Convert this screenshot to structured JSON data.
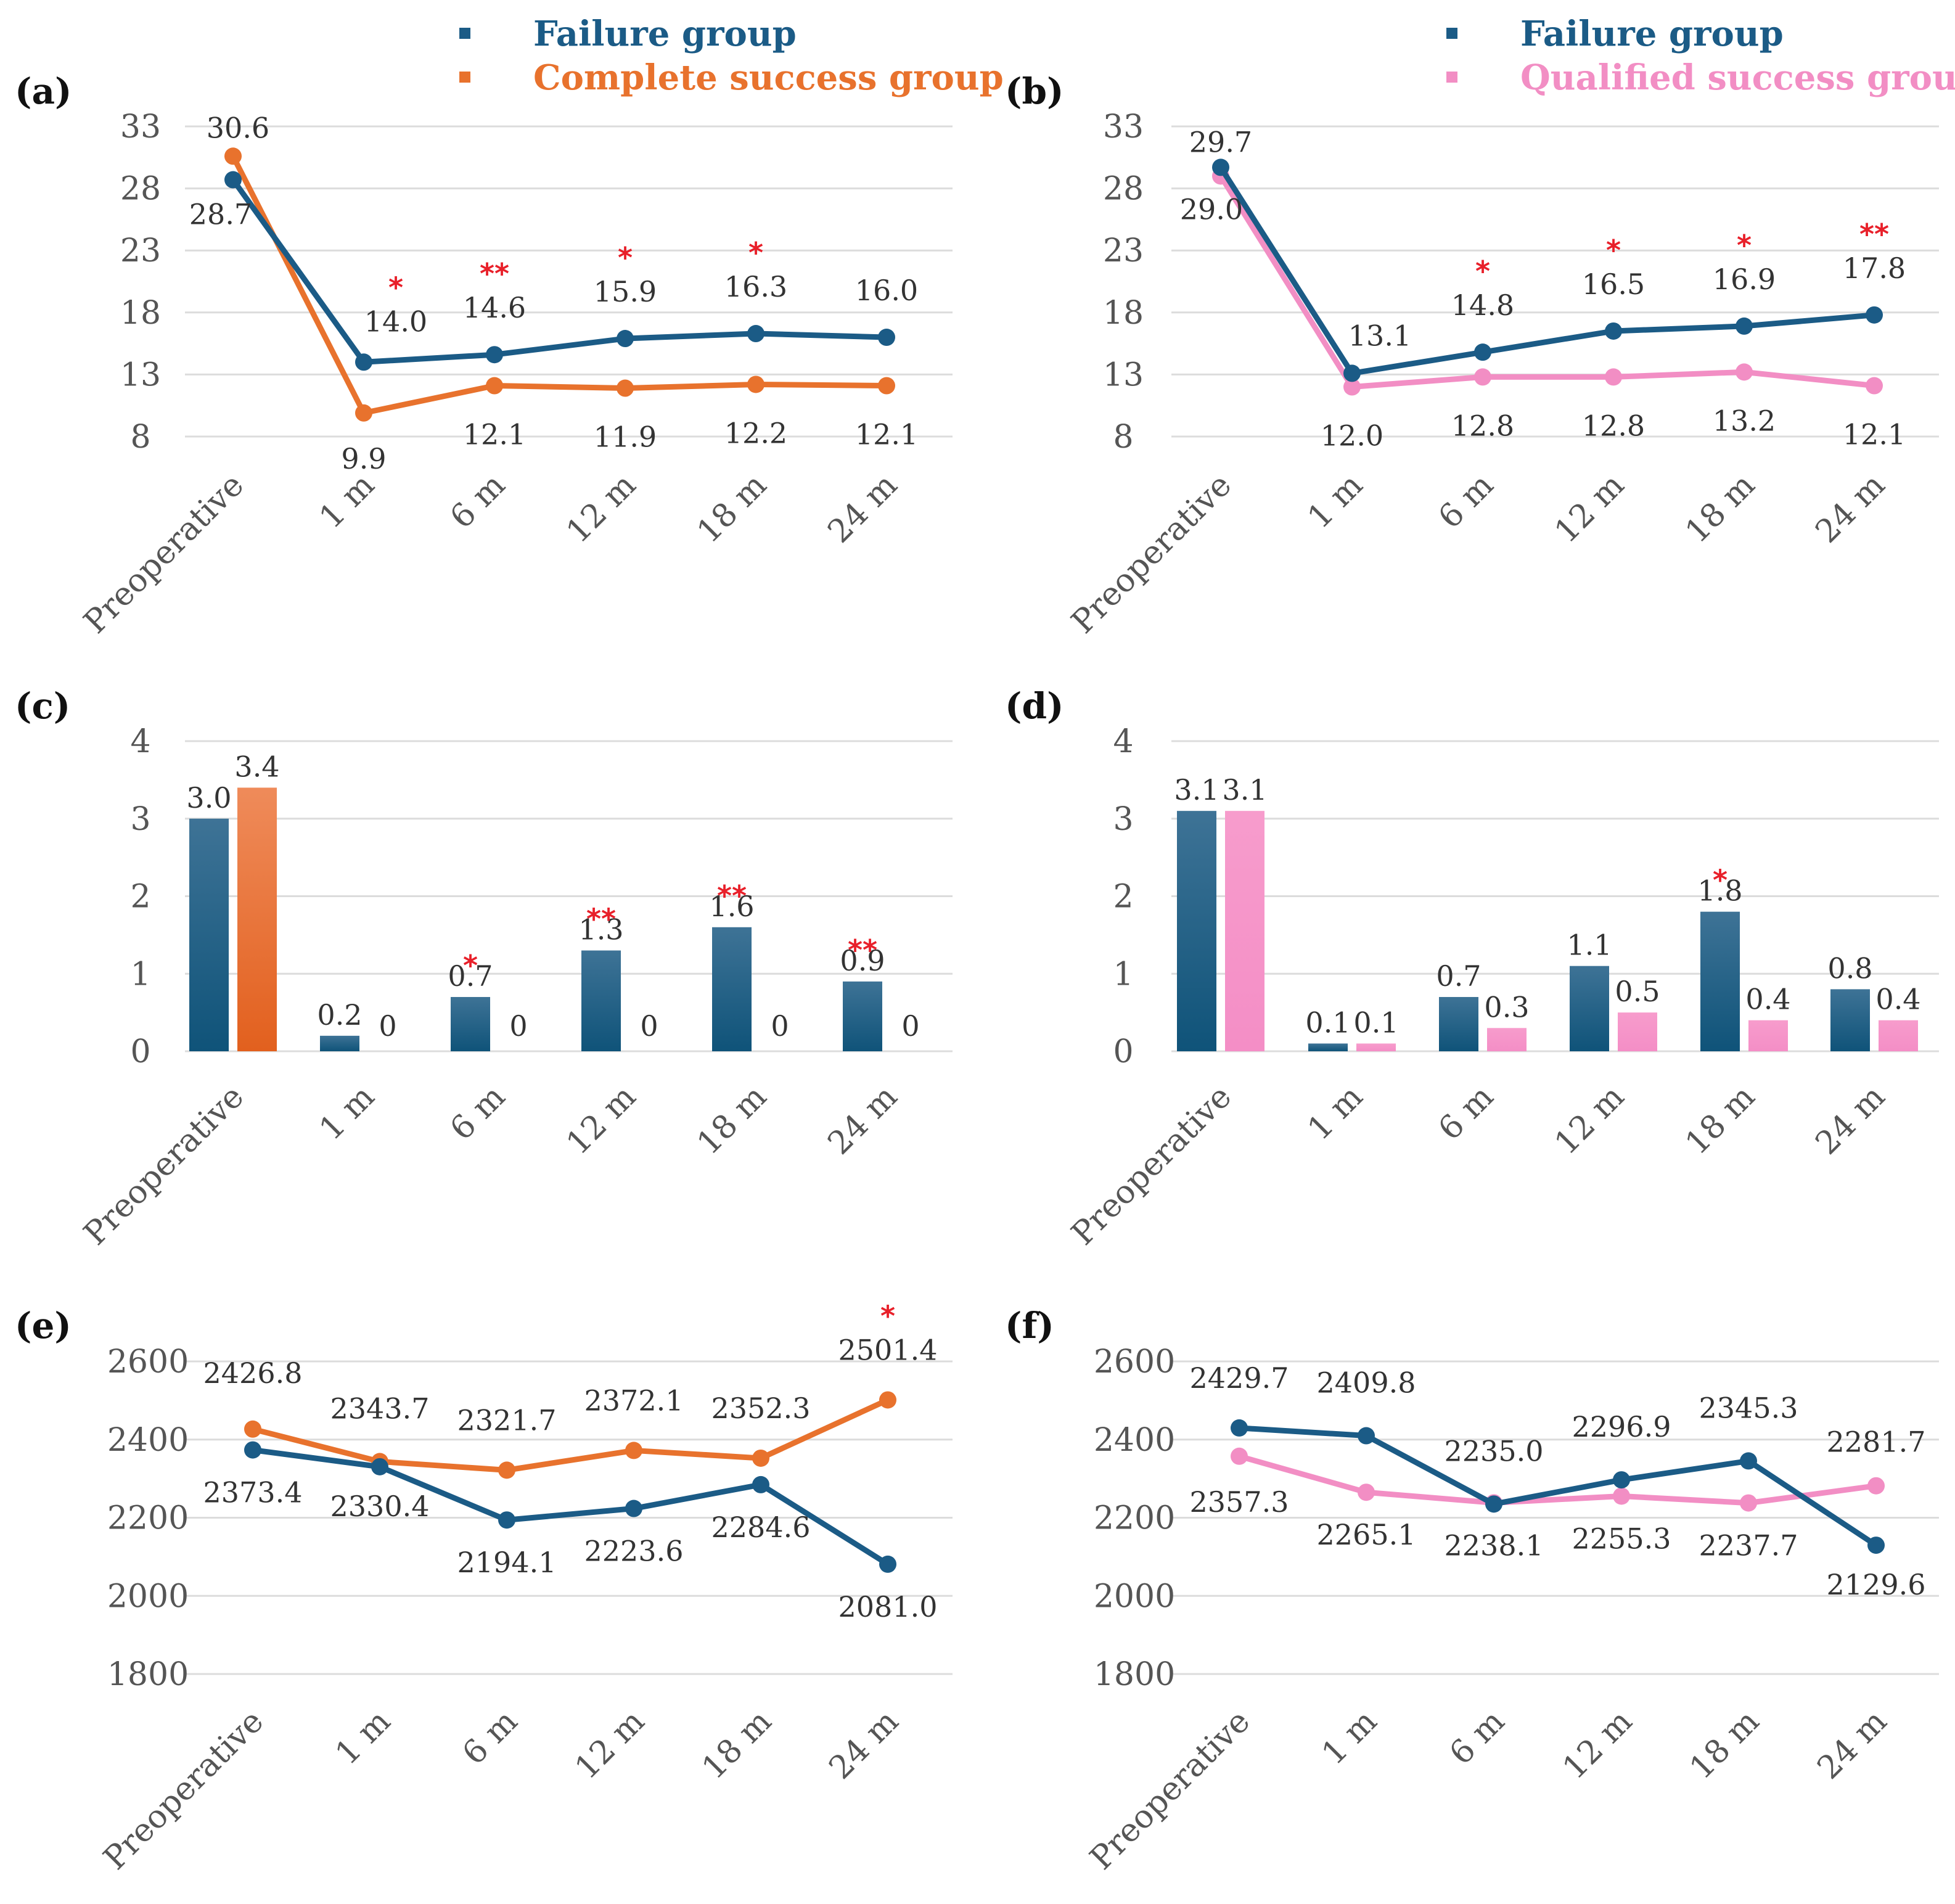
{
  "legends": {
    "left": [
      {
        "label": "Failure group",
        "color": "#1b5b86"
      },
      {
        "label": "Complete success group",
        "color": "#e8722d"
      }
    ],
    "right": [
      {
        "label": "Failure group",
        "color": "#1b5b86"
      },
      {
        "label": "Qualified success group",
        "color": "#f28ec4"
      }
    ]
  },
  "chart_data": [
    {
      "panel": "(a)",
      "type": "line",
      "categories": [
        "Preoperative",
        "1 m",
        "6 m",
        "12 m",
        "18 m",
        "24 m"
      ],
      "yticks": [
        "33",
        "28",
        "23",
        "18",
        "13",
        "8"
      ],
      "ylim": [
        8,
        33
      ],
      "series": [
        {
          "name": "Failure group",
          "color": "#1b5b86",
          "values": [
            28.7,
            14.0,
            14.6,
            15.9,
            16.3,
            16.0
          ],
          "labels": [
            "28.7",
            "14.0",
            "14.6",
            "15.9",
            "16.3",
            "16.0"
          ]
        },
        {
          "name": "Complete success group",
          "color": "#e8722d",
          "values": [
            30.6,
            9.9,
            12.1,
            11.9,
            12.2,
            12.1
          ],
          "labels": [
            "30.6",
            "9.9",
            "12.1",
            "11.9",
            "12.2",
            "12.1"
          ]
        }
      ],
      "significance": [
        "",
        "*",
        "**",
        "*",
        "*",
        ""
      ]
    },
    {
      "panel": "(b)",
      "type": "line",
      "categories": [
        "Preoperative",
        "1 m",
        "6 m",
        "12 m",
        "18 m",
        "24 m"
      ],
      "yticks": [
        "33",
        "28",
        "23",
        "18",
        "13",
        "8"
      ],
      "ylim": [
        8,
        33
      ],
      "series": [
        {
          "name": "Failure group",
          "color": "#1b5b86",
          "values": [
            29.7,
            13.1,
            14.8,
            16.5,
            16.9,
            17.8
          ],
          "labels": [
            "29.7",
            "13.1",
            "14.8",
            "16.5",
            "16.9",
            "17.8"
          ]
        },
        {
          "name": "Qualified success group",
          "color": "#f28ec4",
          "values": [
            29.0,
            12.0,
            12.8,
            12.8,
            13.2,
            12.1
          ],
          "labels": [
            "29.0",
            "12.0",
            "12.8",
            "12.8",
            "13.2",
            "12.1"
          ]
        }
      ],
      "significance": [
        "",
        "",
        "*",
        "*",
        "*",
        "**"
      ]
    },
    {
      "panel": "(c)",
      "type": "bar",
      "categories": [
        "Preoperative",
        "1 m",
        "6 m",
        "12 m",
        "18 m",
        "24 m"
      ],
      "yticks": [
        "4",
        "3",
        "2",
        "1",
        "0"
      ],
      "ylim": [
        0,
        4
      ],
      "series": [
        {
          "name": "Failure group",
          "color": "#1b5b86",
          "values": [
            3.0,
            0.2,
            0.7,
            1.3,
            1.6,
            0.9
          ],
          "labels": [
            "3.0",
            "0.2",
            "0.7",
            "1.3",
            "1.6",
            "0.9"
          ]
        },
        {
          "name": "Complete success group",
          "color": "#e8722d",
          "values": [
            3.4,
            0,
            0,
            0,
            0,
            0
          ],
          "labels": [
            "3.4",
            "0",
            "0",
            "0",
            "0",
            "0"
          ]
        }
      ],
      "significance": [
        "",
        "",
        "*",
        "**",
        "**",
        "**"
      ]
    },
    {
      "panel": "(d)",
      "type": "bar",
      "categories": [
        "Preoperative",
        "1 m",
        "6 m",
        "12 m",
        "18 m",
        "24 m"
      ],
      "yticks": [
        "4",
        "3",
        "2",
        "1",
        "0"
      ],
      "ylim": [
        0,
        4
      ],
      "series": [
        {
          "name": "Failure group",
          "color": "#1b5b86",
          "values": [
            3.1,
            0.1,
            0.7,
            1.1,
            1.8,
            0.8
          ],
          "labels": [
            "3.1",
            "0.1",
            "0.7",
            "1.1",
            "1.8",
            "0.8"
          ]
        },
        {
          "name": "Qualified success group",
          "color": "#f28ec4",
          "values": [
            3.1,
            0.1,
            0.3,
            0.5,
            0.4,
            0.4
          ],
          "labels": [
            "3.1",
            "0.1",
            "0.3",
            "0.5",
            "0.4",
            "0.4"
          ]
        }
      ],
      "significance": [
        "",
        "",
        "",
        "",
        "*",
        ""
      ]
    },
    {
      "panel": "(e)",
      "type": "line",
      "categories": [
        "Preoperative",
        "1 m",
        "6 m",
        "12 m",
        "18 m",
        "24 m"
      ],
      "yticks": [
        "2600",
        "2400",
        "2200",
        "2000",
        "1800"
      ],
      "ylim": [
        1800,
        2600
      ],
      "series": [
        {
          "name": "Failure group",
          "color": "#1b5b86",
          "values": [
            2373.4,
            2330.4,
            2194.1,
            2223.6,
            2284.6,
            2081.0
          ],
          "labels": [
            "2373.4",
            "2330.4",
            "2194.1",
            "2223.6",
            "2284.6",
            "2081.0"
          ]
        },
        {
          "name": "Complete success group",
          "color": "#e8722d",
          "values": [
            2426.8,
            2343.7,
            2321.7,
            2372.1,
            2352.3,
            2501.4
          ],
          "labels": [
            "2426.8",
            "2343.7",
            "2321.7",
            "2372.1",
            "2352.3",
            "2501.4"
          ]
        }
      ],
      "significance": [
        "",
        "",
        "",
        "",
        "",
        "*"
      ]
    },
    {
      "panel": "(f)",
      "type": "line",
      "categories": [
        "Preoperative",
        "1 m",
        "6 m",
        "12 m",
        "18 m",
        "24 m"
      ],
      "yticks": [
        "2600",
        "2400",
        "2200",
        "2000",
        "1800"
      ],
      "ylim": [
        1800,
        2600
      ],
      "series": [
        {
          "name": "Failure group",
          "color": "#1b5b86",
          "values": [
            2429.7,
            2409.8,
            2235.0,
            2296.9,
            2345.3,
            2129.6
          ],
          "labels": [
            "2429.7",
            "2409.8",
            "2235.0",
            "2296.9",
            "2345.3",
            "2129.6"
          ]
        },
        {
          "name": "Qualified success group",
          "color": "#f28ec4",
          "values": [
            2357.3,
            2265.1,
            2238.1,
            2255.3,
            2237.7,
            2281.7
          ],
          "labels": [
            "2357.3",
            "2265.1",
            "2238.1",
            "2255.3",
            "2237.7",
            "2281.7"
          ]
        }
      ],
      "significance": [
        "",
        "",
        "",
        "",
        "",
        ""
      ]
    }
  ]
}
